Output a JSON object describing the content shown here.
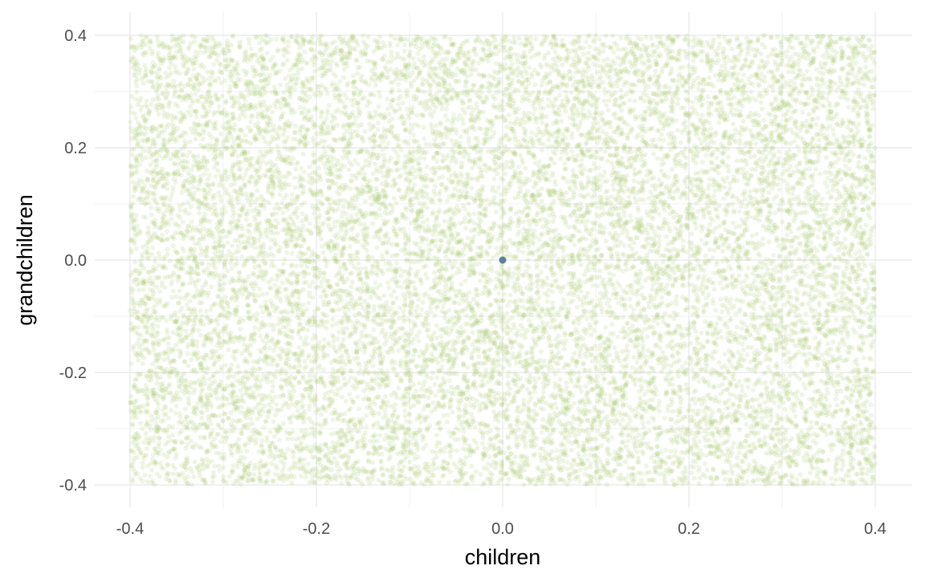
{
  "chart_data": {
    "type": "scatter",
    "title": "",
    "xlabel": "children",
    "ylabel": "grandchildren",
    "xlim": [
      -0.4,
      0.4
    ],
    "ylim": [
      -0.4,
      0.4
    ],
    "x_ticks": [
      -0.4,
      -0.2,
      0.0,
      0.2,
      0.4
    ],
    "x_tick_labels": [
      "-0.4",
      "-0.2",
      "0.0",
      "0.2",
      "0.4"
    ],
    "y_ticks": [
      -0.4,
      -0.2,
      0.0,
      0.2,
      0.4
    ],
    "y_tick_labels": [
      "-0.4",
      "-0.2",
      "0.0",
      "0.2",
      "0.4"
    ],
    "grid": true,
    "legend": "none",
    "background_color": "#ffffff",
    "gridline_color": "#ebebeb",
    "series": [
      {
        "kind": "cloud",
        "distribution": "uniform",
        "x_range": [
          -0.4,
          0.4
        ],
        "y_range": [
          -0.4,
          0.4
        ],
        "color": "#a8c86a",
        "opacity": 0.18
      },
      {
        "kind": "point",
        "points": [
          {
            "x": 0.0,
            "y": 0.0
          }
        ],
        "color": "#5f7f9e"
      }
    ]
  }
}
